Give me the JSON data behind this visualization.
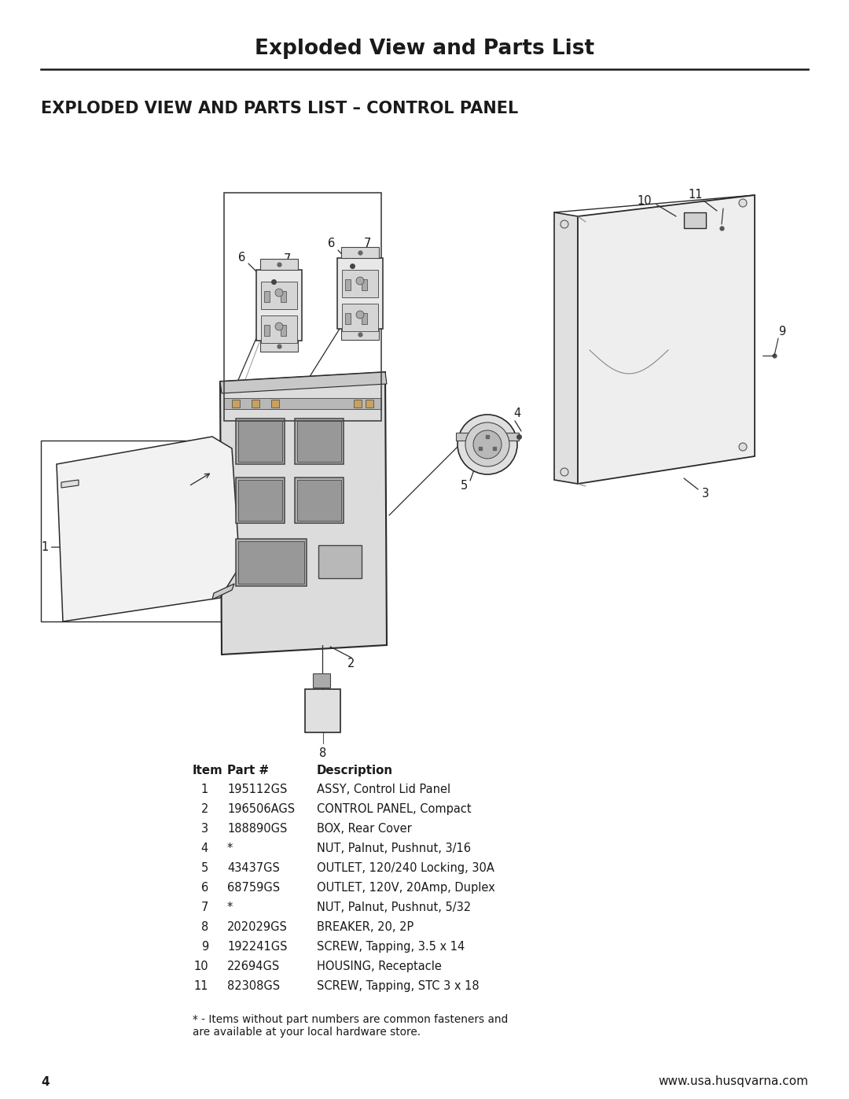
{
  "page_title": "Exploded View and Parts List",
  "section_title": "EXPLODED VIEW AND PARTS LIST – CONTROL PANEL",
  "background_color": "#ffffff",
  "text_color": "#1a1a1a",
  "page_number": "4",
  "website": "www.usa.husqvarna.com",
  "footnote": "* - Items without part numbers are common fasteners and\nare available at your local hardware store.",
  "table_header": [
    "Item",
    "Part #",
    "Description"
  ],
  "table_rows": [
    [
      "1",
      "195112GS",
      "ASSY, Control Lid Panel"
    ],
    [
      "2",
      "196506AGS",
      "CONTROL PANEL, Compact"
    ],
    [
      "3",
      "188890GS",
      "BOX, Rear Cover"
    ],
    [
      "4",
      "*",
      "NUT, Palnut, Pushnut, 3/16"
    ],
    [
      "5",
      "43437GS",
      "OUTLET, 120/240 Locking, 30A"
    ],
    [
      "6",
      "68759GS",
      "OUTLET, 120V, 20Amp, Duplex"
    ],
    [
      "7",
      "*",
      "NUT, Palnut, Pushnut, 5/32"
    ],
    [
      "8",
      "202029GS",
      "BREAKER, 20, 2P"
    ],
    [
      "9",
      "192241GS",
      "SCREW, Tapping, 3.5 x 14"
    ],
    [
      "10",
      "22694GS",
      "HOUSING, Receptacle"
    ],
    [
      "11",
      "82308GS",
      "SCREW, Tapping, STC 3 x 18"
    ]
  ]
}
